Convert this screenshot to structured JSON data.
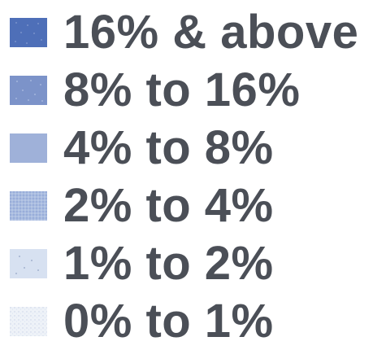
{
  "legend": {
    "items": [
      {
        "label": "16% & above",
        "color": "#4e6fb8",
        "pattern": "dots-light"
      },
      {
        "label": "8% to 16%",
        "color": "#7c93c9",
        "pattern": "dots-light"
      },
      {
        "label": "4% to 8%",
        "color": "#9fb1d9",
        "pattern": "solid"
      },
      {
        "label": "2% to 4%",
        "color": "#a9bce0",
        "pattern": "stipple-dense"
      },
      {
        "label": "1% to 2%",
        "color": "#d7e1f1",
        "pattern": "dots-dark"
      },
      {
        "label": "0% to 1%",
        "color": "#eef2f8",
        "pattern": "stipple-light"
      }
    ]
  }
}
